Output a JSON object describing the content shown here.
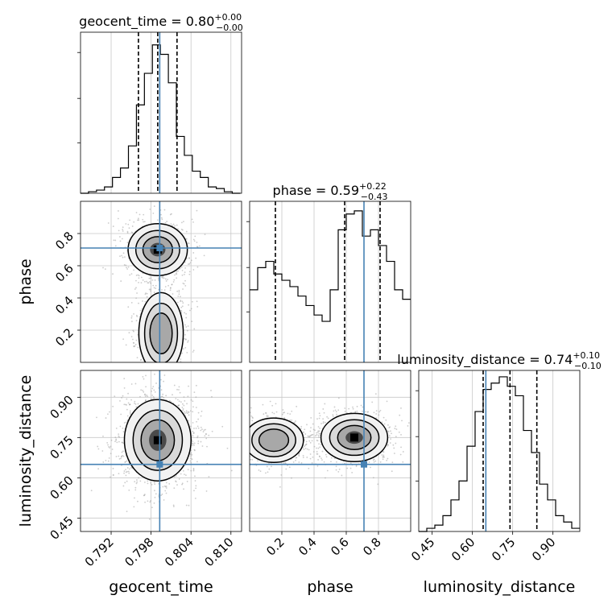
{
  "chart_data": {
    "type": "corner",
    "parameters": [
      "geocent_time",
      "phase",
      "luminosity_distance"
    ],
    "titles": [
      {
        "parameter": "geocent_time",
        "prefix": "geocent_time = ",
        "value": "0.80",
        "upper": "+0.00",
        "lower": "−0.00"
      },
      {
        "parameter": "phase",
        "prefix": "phase = ",
        "value": "0.59",
        "upper": "+0.22",
        "lower": "−0.43"
      },
      {
        "parameter": "luminosity_distance",
        "prefix": "luminosity_distance = ",
        "value": "0.74",
        "upper": "+0.10",
        "lower": "−0.10"
      }
    ],
    "xlabels": [
      "geocent_time",
      "phase",
      "luminosity_distance"
    ],
    "ylabels": [
      "phase",
      "luminosity_distance"
    ],
    "ranges": [
      [
        0.7874,
        0.8116
      ],
      [
        0.0,
        1.0
      ],
      [
        0.4,
        1.0
      ]
    ],
    "ticks": {
      "geocent_time": [
        "0.792",
        "0.798",
        "0.804",
        "0.810"
      ],
      "phase": [
        "0.2",
        "0.4",
        "0.6",
        "0.8"
      ],
      "luminosity_distance": [
        "0.45",
        "0.60",
        "0.75",
        "0.90"
      ]
    },
    "quantiles": {
      "geocent_time": [
        0.7961,
        0.799,
        0.8019
      ],
      "phase": [
        0.16,
        0.59,
        0.81
      ],
      "luminosity_distance": [
        0.64,
        0.74,
        0.84
      ]
    },
    "truths": {
      "geocent_time": 0.7993,
      "phase": 0.71,
      "luminosity_distance": 0.65
    },
    "truth_color": "#4682b4",
    "hist_color": "#000000",
    "grid": true,
    "marginals": {
      "geocent_time": {
        "bins": [
          0.7874,
          0.7886,
          0.7898,
          0.791,
          0.7922,
          0.7934,
          0.7946,
          0.7958,
          0.797,
          0.7982,
          0.7994,
          0.8006,
          0.8018,
          0.803,
          0.8042,
          0.8054,
          0.8066,
          0.8078,
          0.809,
          0.8102,
          0.8114
        ],
        "counts": [
          0.0,
          0.01,
          0.02,
          0.04,
          0.1,
          0.16,
          0.3,
          0.56,
          0.76,
          0.94,
          0.88,
          0.7,
          0.36,
          0.24,
          0.14,
          0.1,
          0.04,
          0.03,
          0.01,
          0.0
        ]
      },
      "phase": {
        "bins": [
          0.0,
          0.05,
          0.1,
          0.15,
          0.2,
          0.25,
          0.3,
          0.35,
          0.4,
          0.45,
          0.5,
          0.55,
          0.6,
          0.65,
          0.7,
          0.75,
          0.8,
          0.85,
          0.9,
          0.95,
          1.0
        ],
        "counts": [
          0.46,
          0.6,
          0.64,
          0.56,
          0.52,
          0.48,
          0.42,
          0.36,
          0.3,
          0.26,
          0.46,
          0.84,
          0.94,
          0.96,
          0.8,
          0.84,
          0.74,
          0.64,
          0.46,
          0.4
        ]
      },
      "luminosity_distance": {
        "bins": [
          0.4,
          0.43,
          0.46,
          0.49,
          0.52,
          0.55,
          0.58,
          0.61,
          0.64,
          0.67,
          0.7,
          0.73,
          0.76,
          0.79,
          0.82,
          0.85,
          0.88,
          0.91,
          0.94,
          0.97,
          1.0
        ],
        "counts": [
          0.0,
          0.02,
          0.04,
          0.1,
          0.2,
          0.32,
          0.54,
          0.76,
          0.9,
          0.94,
          0.98,
          0.92,
          0.86,
          0.64,
          0.5,
          0.3,
          0.2,
          0.1,
          0.06,
          0.02
        ]
      }
    }
  }
}
